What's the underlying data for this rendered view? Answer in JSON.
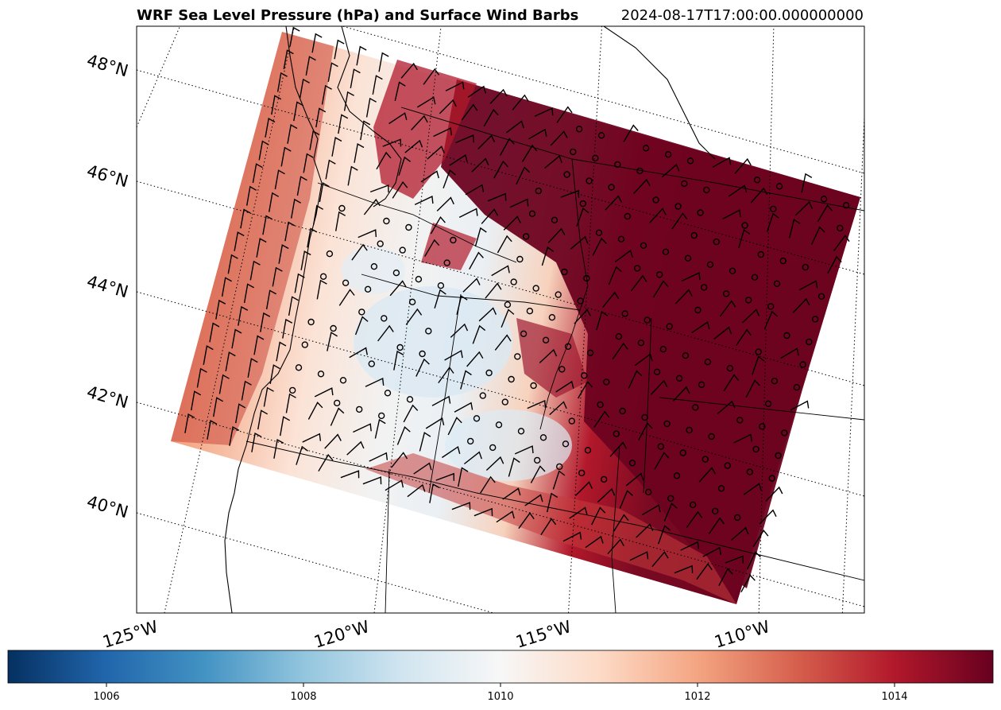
{
  "title": {
    "main": "WRF Sea Level Pressure (hPa) and Surface Wind Barbs",
    "time": "2024-08-17T17:00:00.000000000"
  },
  "map": {
    "lat_labels": [
      "48°N",
      "46°N",
      "44°N",
      "42°N",
      "40°N"
    ],
    "lon_labels": [
      "125°W",
      "120°W",
      "115°W",
      "110°W"
    ],
    "gridlines": "dotted",
    "field": "Sea Level Pressure (hPa)",
    "overlay": "Surface Wind Barbs",
    "colormap": "RdBu_r",
    "colors": {
      "low": "#053061",
      "mid": "#f7f7f7",
      "high": "#67001f"
    }
  },
  "colorbar": {
    "range": [
      1005,
      1015
    ],
    "ticks": [
      "1006",
      "1008",
      "1010",
      "1012",
      "1014"
    ]
  }
}
